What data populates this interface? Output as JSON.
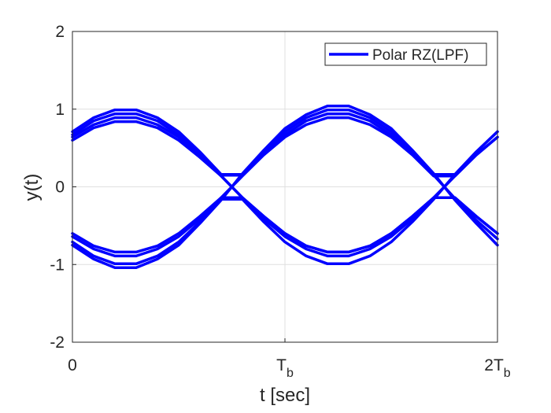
{
  "chart_data": {
    "type": "line",
    "xlabel": "t [sec]",
    "ylabel": "y(t)",
    "x": [
      0,
      0.1,
      0.2,
      0.3,
      0.4,
      0.5,
      0.6,
      0.7,
      0.8,
      0.9,
      1.0,
      1.1,
      1.2,
      1.3,
      1.4,
      1.5,
      1.6,
      1.7,
      1.8,
      1.9,
      2.0
    ],
    "xlim": [
      0,
      2
    ],
    "ylim": [
      -2,
      2
    ],
    "xticks": [
      0,
      {
        "value": 1,
        "label": "T",
        "subscript": "b"
      },
      {
        "value": 2,
        "label": "2T",
        "subscript": "b"
      }
    ],
    "yticks": [
      -2,
      -1,
      0,
      1,
      2
    ],
    "grid": true,
    "legend": "northeast",
    "series": [
      {
        "name": "Polar RZ(LPF)",
        "color": "#0000ff",
        "values": [
          [
            0.71,
            0.89,
            0.99,
            0.99,
            0.89,
            0.71,
            0.45,
            0.16,
            0.16,
            0.45,
            0.71,
            0.89,
            0.99,
            0.99,
            0.89,
            0.71,
            0.45,
            0.16,
            0.16,
            0.45,
            0.71
          ],
          [
            0.64,
            0.8,
            0.89,
            0.89,
            0.8,
            0.64,
            0.41,
            0.14,
            -0.14,
            -0.41,
            -0.64,
            -0.8,
            -0.89,
            -0.89,
            -0.8,
            -0.64,
            -0.41,
            -0.14,
            0.14,
            0.41,
            0.64
          ],
          [
            -0.75,
            -0.93,
            -1.04,
            -1.04,
            -0.93,
            -0.75,
            -0.47,
            -0.17,
            0.17,
            0.47,
            0.75,
            0.93,
            1.04,
            1.04,
            0.93,
            0.75,
            0.47,
            0.17,
            -0.17,
            -0.47,
            -0.75
          ],
          [
            -0.6,
            -0.76,
            -0.84,
            -0.84,
            -0.76,
            -0.6,
            -0.38,
            -0.14,
            -0.14,
            -0.38,
            -0.6,
            -0.76,
            -0.84,
            -0.84,
            -0.76,
            -0.6,
            -0.38,
            -0.14,
            -0.14,
            -0.38,
            -0.6
          ],
          [
            0.67,
            0.85,
            0.94,
            0.94,
            0.85,
            0.67,
            0.43,
            0.15,
            0.15,
            0.43,
            0.67,
            0.85,
            0.94,
            0.94,
            0.85,
            0.67,
            0.43,
            0.15,
            -0.15,
            -0.43,
            -0.67
          ],
          [
            -0.71,
            -0.89,
            -0.99,
            -0.99,
            -0.89,
            -0.71,
            -0.45,
            -0.16,
            -0.16,
            -0.45,
            -0.71,
            -0.89,
            -0.99,
            -0.99,
            -0.89,
            -0.71,
            -0.45,
            -0.16,
            0.16,
            0.45,
            0.71
          ],
          [
            0.6,
            0.76,
            0.84,
            0.84,
            0.76,
            0.6,
            0.38,
            0.14,
            -0.14,
            -0.38,
            -0.6,
            -0.76,
            -0.84,
            -0.84,
            -0.76,
            -0.6,
            -0.38,
            -0.14,
            -0.14,
            -0.38,
            -0.6
          ],
          [
            -0.64,
            -0.8,
            -0.89,
            -0.89,
            -0.8,
            -0.64,
            -0.41,
            -0.14,
            0.14,
            0.41,
            0.64,
            0.8,
            0.89,
            0.89,
            0.8,
            0.64,
            0.41,
            0.14,
            0.14,
            0.41,
            0.64
          ]
        ]
      }
    ]
  }
}
